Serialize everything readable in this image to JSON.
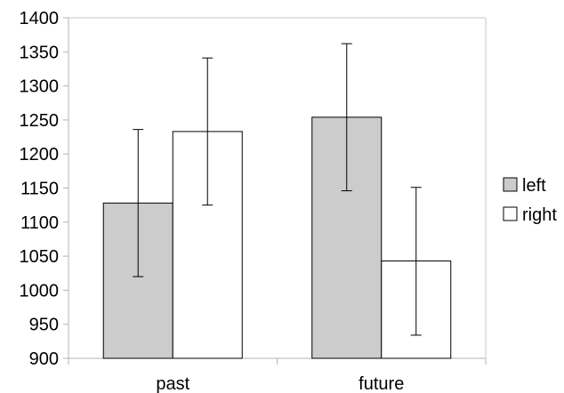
{
  "chart_data": {
    "type": "bar",
    "title": "",
    "xlabel": "",
    "ylabel": "",
    "categories": [
      "past",
      "future"
    ],
    "ylim": [
      900,
      1400
    ],
    "yticks": [
      900,
      950,
      1000,
      1050,
      1100,
      1150,
      1200,
      1250,
      1300,
      1350,
      1400
    ],
    "grid": false,
    "legend_position": "right",
    "series": [
      {
        "name": "left",
        "color": "#cccccc",
        "values": [
          1128,
          1254
        ],
        "error_low": [
          1020,
          1146
        ],
        "error_high": [
          1236,
          1362
        ]
      },
      {
        "name": "right",
        "color": "#ffffff",
        "values": [
          1233,
          1043
        ],
        "error_low": [
          1125,
          934
        ],
        "error_high": [
          1341,
          1151
        ]
      }
    ]
  }
}
